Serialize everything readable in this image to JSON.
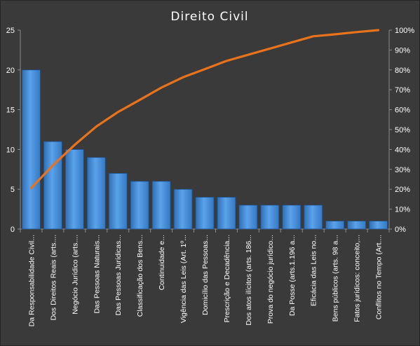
{
  "chart_data": {
    "type": "bar",
    "title": "Direito  Civil",
    "categories": [
      "Da Responsabilidade Civil...",
      "Dos Direitos Reais (arts....",
      "Negócio Jurídico (arts....",
      "Das Pessoas Naturais...",
      "Das Pessoas Jurídicas...",
      "Classificação dos Bens...",
      "Continuidade e...",
      "Vigência das Leis (Art. 1º...",
      "Domicílio das Pessoas...",
      "Prescrição e Decadência...",
      "Dos atos ilícitos (arts. 186...",
      "Prova do negócio jurídico...",
      "Da Posse (arts.1.196 a...",
      "Eficácia das Leis no...",
      "Bens públicos (arts. 98 a...",
      "Fatos jurídicos: conceito,...",
      "Conflitos no Tempo  (Art...."
    ],
    "series": [
      {
        "type": "bar",
        "values": [
          20,
          11,
          10,
          9,
          7,
          6,
          6,
          5,
          4,
          4,
          3,
          3,
          3,
          3,
          1,
          1,
          1
        ],
        "color": "#4a90d9"
      },
      {
        "type": "line",
        "axis": "secondary",
        "values": [
          20.6,
          32.0,
          42.3,
          51.5,
          58.8,
          64.9,
          71.1,
          76.3,
          80.4,
          84.5,
          87.6,
          90.7,
          93.8,
          96.9,
          97.9,
          99.0,
          100.0
        ],
        "color": "#e8731c"
      }
    ],
    "y_primary": {
      "min": 0,
      "max": 25,
      "ticks": [
        "0",
        "5",
        "10",
        "15",
        "20",
        "25"
      ]
    },
    "y_secondary": {
      "min": 0,
      "max": 100,
      "ticks": [
        "0%",
        "10%",
        "20%",
        "30%",
        "40%",
        "50%",
        "60%",
        "70%",
        "80%",
        "90%",
        "100%"
      ]
    },
    "grid": false,
    "legend": "none"
  }
}
